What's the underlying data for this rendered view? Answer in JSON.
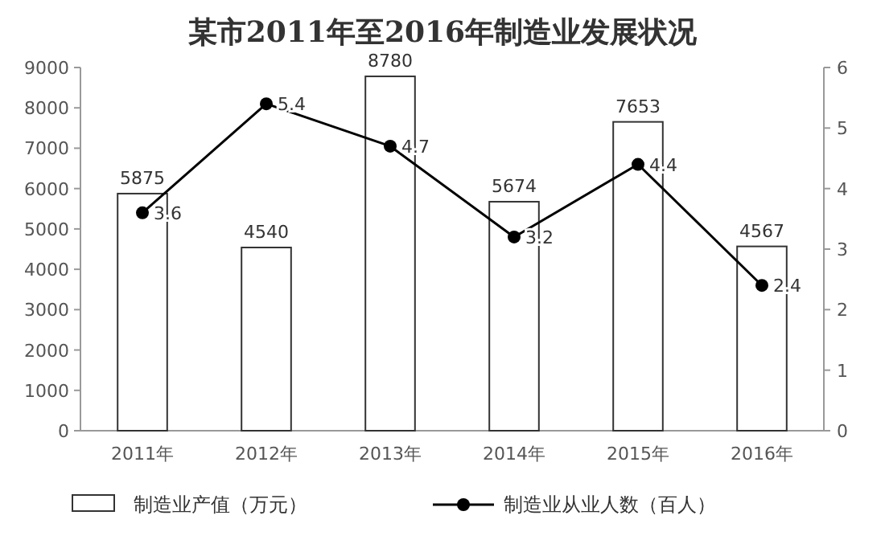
{
  "chart_data": {
    "type": "bar",
    "title": "某市2011年至2016年制造业发展状况",
    "categories": [
      "2011年",
      "2012年",
      "2013年",
      "2014年",
      "2015年",
      "2016年"
    ],
    "series": [
      {
        "name": "制造业产值（万元）",
        "color": "#ffffff",
        "values": [
          5875,
          4540,
          8780,
          5674,
          7653,
          4567
        ]
      },
      {
        "name": "制造业从业人数（百人）",
        "type": "line",
        "axis": "y2",
        "color": "#000000",
        "values": [
          3.6,
          5.4,
          4.7,
          3.2,
          4.4,
          2.4
        ]
      }
    ],
    "ylim": [
      0,
      9000
    ],
    "yticks": [
      0,
      1000,
      2000,
      3000,
      4000,
      5000,
      6000,
      7000,
      8000,
      9000
    ],
    "y2lim": [
      0,
      6
    ],
    "y2ticks": [
      0,
      1,
      2,
      3,
      4,
      5,
      6
    ],
    "data_labels": true,
    "legend": "bottom",
    "marker": "circle",
    "line_style": "solid",
    "grid": false
  }
}
